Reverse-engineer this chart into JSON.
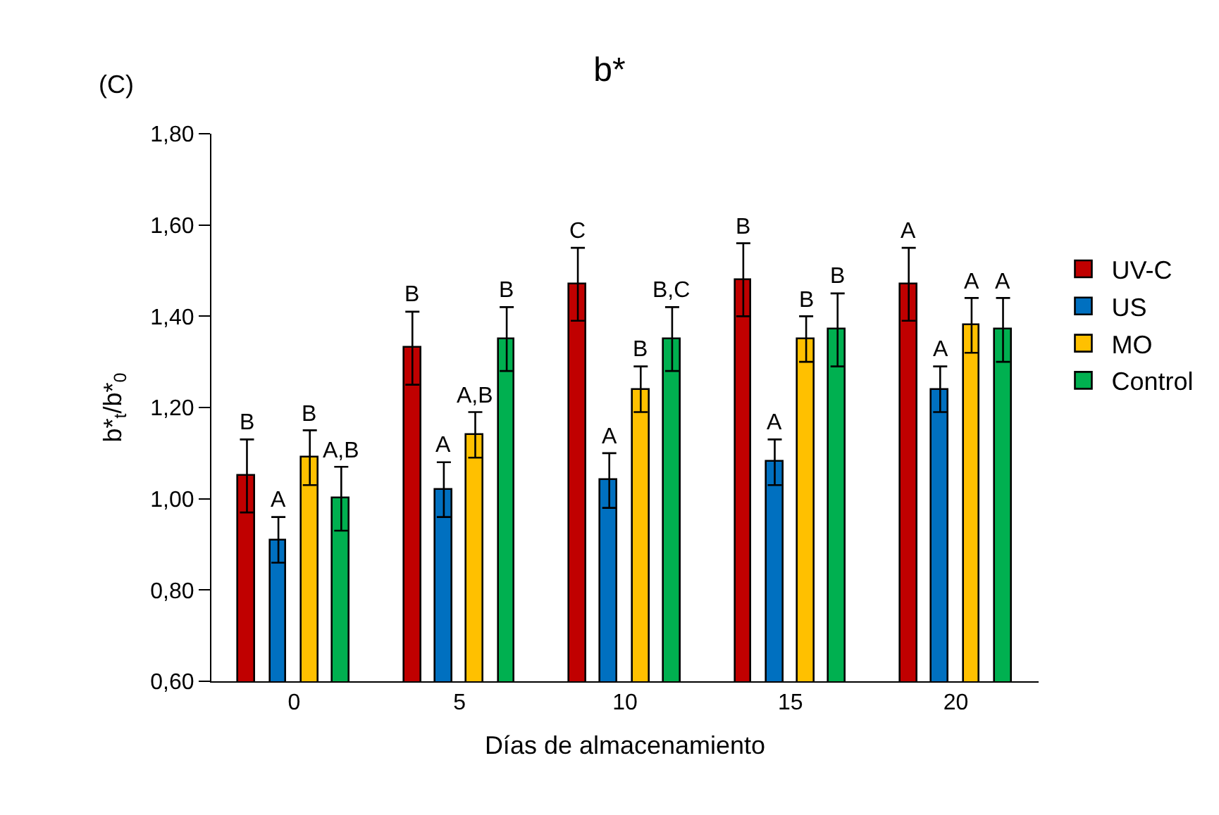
{
  "chart_data": {
    "type": "bar",
    "title": "b*",
    "xlabel": "Días de almacenamiento",
    "ylabel": "b*$_{t}$/b*$_{0}$",
    "annotations": [
      "(C)"
    ],
    "categories": [
      "0",
      "5",
      "10",
      "15",
      "20"
    ],
    "series": [
      {
        "name": "UV-C",
        "color": "#c00000",
        "values": [
          1.05,
          1.33,
          1.47,
          1.48,
          1.47
        ],
        "errors": [
          0.08,
          0.08,
          0.08,
          0.08,
          0.08
        ],
        "value_labels": [
          "B",
          "B",
          "C",
          "B",
          "A"
        ]
      },
      {
        "name": "US",
        "color": "#0070c0",
        "values": [
          0.91,
          1.02,
          1.04,
          1.08,
          1.24
        ],
        "errors": [
          0.05,
          0.06,
          0.06,
          0.05,
          0.05
        ],
        "value_labels": [
          "A",
          "A",
          "A",
          "A",
          "A"
        ]
      },
      {
        "name": "MO",
        "color": "#ffc000",
        "values": [
          1.09,
          1.14,
          1.24,
          1.35,
          1.38
        ],
        "errors": [
          0.06,
          0.05,
          0.05,
          0.05,
          0.06
        ],
        "value_labels": [
          "B",
          "A,B",
          "B",
          "B",
          "A"
        ]
      },
      {
        "name": "Control",
        "color": "#00b050",
        "values": [
          1.0,
          1.35,
          1.35,
          1.37,
          1.37
        ],
        "errors": [
          0.07,
          0.07,
          0.07,
          0.08,
          0.07
        ],
        "value_labels": [
          "A,B",
          "B",
          "B,C",
          "B",
          "A"
        ]
      }
    ],
    "ylim": [
      0.6,
      1.8
    ],
    "yticks": [
      {
        "value": 0.6,
        "label": "0,60"
      },
      {
        "value": 0.8,
        "label": "0,80"
      },
      {
        "value": 1.0,
        "label": "1,00"
      },
      {
        "value": 1.2,
        "label": "1,20"
      },
      {
        "value": 1.4,
        "label": "1,40"
      },
      {
        "value": 1.6,
        "label": "1,60"
      },
      {
        "value": 1.8,
        "label": "1,80"
      }
    ],
    "legend": "right"
  }
}
